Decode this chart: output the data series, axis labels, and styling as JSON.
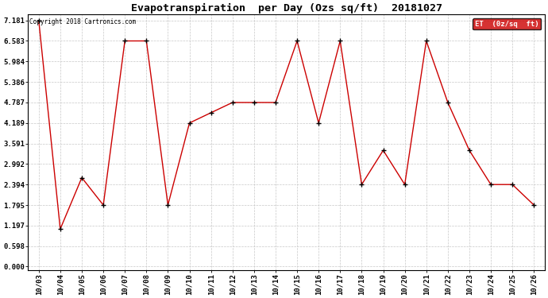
{
  "title": "Evapotranspiration  per Day (Ozs sq/ft)  20181027",
  "copyright": "Copyright 2018 Cartronics.com",
  "legend_label": "ET  (0z/sq  ft)",
  "dates": [
    "10/03",
    "10/04",
    "10/05",
    "10/06",
    "10/07",
    "10/08",
    "10/09",
    "10/10",
    "10/11",
    "10/12",
    "10/13",
    "10/14",
    "10/15",
    "10/16",
    "10/17",
    "10/18",
    "10/19",
    "10/20",
    "10/21",
    "10/22",
    "10/23",
    "10/24",
    "10/25",
    "10/26"
  ],
  "values": [
    7.181,
    1.097,
    2.594,
    1.795,
    6.583,
    6.583,
    1.795,
    4.189,
    4.489,
    4.787,
    4.787,
    4.787,
    6.583,
    4.189,
    6.583,
    2.394,
    3.391,
    2.394,
    6.583,
    4.787,
    3.391,
    2.394,
    2.394,
    1.795
  ],
  "yticks": [
    0.0,
    0.598,
    1.197,
    1.795,
    2.394,
    2.992,
    3.591,
    4.189,
    4.787,
    5.386,
    5.984,
    6.583,
    7.181
  ],
  "line_color": "#cc0000",
  "marker_color": "#000000",
  "background_color": "#ffffff",
  "grid_color": "#c8c8c8",
  "title_fontsize": 9.5,
  "tick_fontsize": 6.5,
  "copyright_fontsize": 5.5,
  "legend_fontsize": 6.5,
  "legend_bg": "#cc0000",
  "legend_text_color": "#ffffff"
}
